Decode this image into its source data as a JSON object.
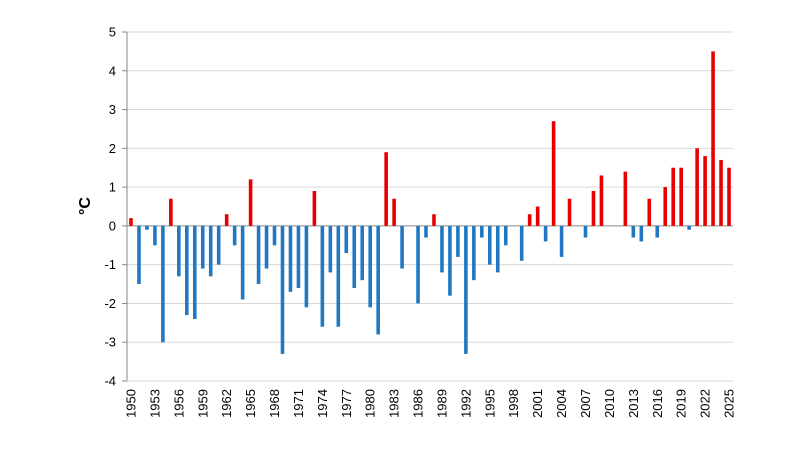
{
  "chart_data": {
    "type": "bar",
    "title": "",
    "xlabel": "",
    "ylabel": "°C",
    "ylim": [
      -4,
      5
    ],
    "yticks": [
      -4,
      -3,
      -2,
      -1,
      0,
      1,
      2,
      3,
      4,
      5
    ],
    "grid": true,
    "legend": "none",
    "x_tick_labels": [
      "1950",
      "1953",
      "1956",
      "1959",
      "1962",
      "1965",
      "1968",
      "1971",
      "1974",
      "1977",
      "1980",
      "1983",
      "1986",
      "1989",
      "1992",
      "1995",
      "1998",
      "2001",
      "2004",
      "2007",
      "2010",
      "2013",
      "2016",
      "2019",
      "2022",
      "2025"
    ],
    "colors": {
      "positive": "#e60000",
      "negative": "#1f78c1",
      "grid": "#d9d9d9",
      "axis": "#888888"
    },
    "categories": [
      1950,
      1951,
      1952,
      1953,
      1954,
      1955,
      1956,
      1957,
      1958,
      1959,
      1960,
      1961,
      1962,
      1963,
      1964,
      1965,
      1966,
      1967,
      1968,
      1969,
      1970,
      1971,
      1972,
      1973,
      1974,
      1975,
      1976,
      1977,
      1978,
      1979,
      1980,
      1981,
      1982,
      1983,
      1984,
      1985,
      1986,
      1987,
      1988,
      1989,
      1990,
      1991,
      1992,
      1993,
      1994,
      1995,
      1996,
      1997,
      1998,
      1999,
      2000,
      2001,
      2002,
      2003,
      2004,
      2005,
      2006,
      2007,
      2008,
      2009,
      2010,
      2011,
      2012,
      2013,
      2014,
      2015,
      2016,
      2017,
      2018,
      2019,
      2020,
      2021,
      2022,
      2023,
      2024,
      2025
    ],
    "values": [
      0.2,
      -1.5,
      -0.1,
      -0.5,
      -3.0,
      0.7,
      -1.3,
      -2.3,
      -2.4,
      -1.1,
      -1.3,
      -1.0,
      0.3,
      -0.5,
      -1.9,
      1.2,
      -1.5,
      -1.1,
      -0.5,
      -3.3,
      -1.7,
      -1.6,
      -2.1,
      0.9,
      -2.6,
      -1.2,
      -2.6,
      -0.7,
      -1.6,
      -1.4,
      -2.1,
      -2.8,
      1.9,
      0.7,
      -1.1,
      0.0,
      -2.0,
      -0.3,
      0.3,
      -1.2,
      -1.8,
      -0.8,
      -3.3,
      -1.4,
      -0.3,
      -1.0,
      -1.2,
      -0.5,
      0.0,
      -0.9,
      0.3,
      0.5,
      -0.4,
      2.7,
      -0.8,
      0.7,
      0.0,
      -0.3,
      0.9,
      1.3,
      0.0,
      0.0,
      1.4,
      -0.3,
      -0.4,
      0.7,
      -0.3,
      1.0,
      1.5,
      1.5,
      -0.1,
      2.0,
      1.8,
      4.5,
      1.7,
      1.5
    ]
  }
}
